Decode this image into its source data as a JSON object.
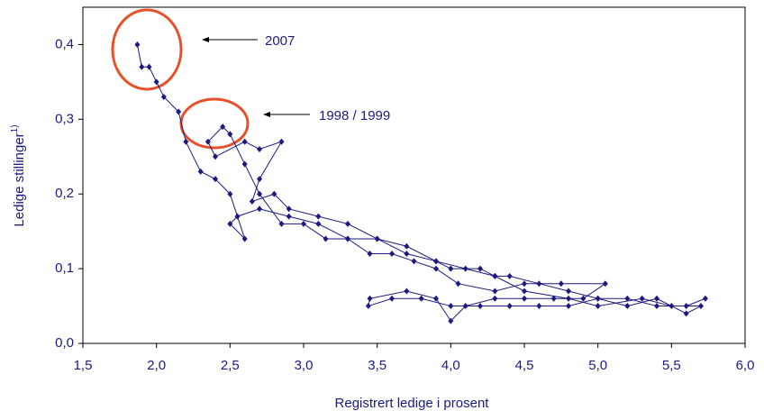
{
  "chart_data": {
    "type": "line",
    "x_label": "Registrert ledige i prosent",
    "y_label": "Ledige stillinger",
    "y_label_note": "1)",
    "annotations": [
      "2007",
      "1998 / 1999"
    ],
    "x": [
      5.73,
      5.6,
      5.4,
      5.2,
      5.0,
      4.8,
      4.6,
      4.4,
      4.2,
      4.0,
      3.8,
      3.6,
      3.44,
      3.45,
      3.7,
      3.9,
      4.0,
      4.1,
      4.3,
      4.5,
      4.7,
      4.9,
      5.05,
      4.75,
      4.5,
      4.3,
      4.05,
      3.9,
      3.75,
      3.6,
      3.45,
      3.3,
      3.15,
      3.0,
      2.85,
      2.7,
      2.6,
      2.5,
      2.45,
      2.35,
      2.4,
      2.6,
      2.7,
      2.85,
      2.7,
      2.65,
      2.8,
      2.9,
      3.1,
      3.3,
      3.5,
      3.7,
      3.9,
      4.0,
      4.2,
      4.3,
      4.4,
      4.6,
      4.8,
      5.0,
      5.2,
      5.4,
      5.6,
      5.7,
      5.5,
      5.3,
      5.0,
      4.8,
      4.5,
      4.3,
      4.1,
      3.9,
      3.7,
      3.5,
      3.3,
      3.1,
      2.9,
      2.7,
      2.55,
      2.5,
      2.6,
      2.5,
      2.4,
      2.3,
      2.2,
      2.15,
      2.05,
      2.0,
      1.95,
      1.9,
      1.87
    ],
    "series": [
      {
        "name": "Ledige stillinger",
        "color": "#1a1a80",
        "values": [
          0.06,
          0.05,
          0.05,
          0.06,
          0.06,
          0.05,
          0.05,
          0.05,
          0.05,
          0.05,
          0.06,
          0.06,
          0.05,
          0.06,
          0.07,
          0.06,
          0.03,
          0.05,
          0.06,
          0.06,
          0.06,
          0.06,
          0.08,
          0.08,
          0.08,
          0.07,
          0.08,
          0.1,
          0.11,
          0.12,
          0.12,
          0.14,
          0.14,
          0.16,
          0.16,
          0.2,
          0.24,
          0.28,
          0.29,
          0.27,
          0.25,
          0.27,
          0.26,
          0.27,
          0.22,
          0.19,
          0.2,
          0.18,
          0.17,
          0.16,
          0.14,
          0.12,
          0.11,
          0.1,
          0.1,
          0.09,
          0.09,
          0.08,
          0.07,
          0.06,
          0.05,
          0.06,
          0.04,
          0.05,
          0.05,
          0.06,
          0.05,
          0.06,
          0.07,
          0.09,
          0.1,
          0.11,
          0.13,
          0.14,
          0.14,
          0.16,
          0.17,
          0.18,
          0.17,
          0.16,
          0.14,
          0.2,
          0.22,
          0.23,
          0.27,
          0.31,
          0.33,
          0.35,
          0.37,
          0.37,
          0.4
        ]
      }
    ],
    "xlim": [
      1.5,
      6.0
    ],
    "xticks": [
      {
        "value": 1.5,
        "label": "1,5"
      },
      {
        "value": 2.0,
        "label": "2,0"
      },
      {
        "value": 2.5,
        "label": "2,5"
      },
      {
        "value": 3.0,
        "label": "3,0"
      },
      {
        "value": 3.5,
        "label": "3,5"
      },
      {
        "value": 4.0,
        "label": "4,0"
      },
      {
        "value": 4.5,
        "label": "4,5"
      },
      {
        "value": 5.0,
        "label": "5,0"
      },
      {
        "value": 5.5,
        "label": "5,5"
      },
      {
        "value": 6.0,
        "label": "6,0"
      }
    ],
    "ylim": [
      0,
      0.45
    ],
    "yticks": [
      {
        "value": 0,
        "label": "0,0"
      },
      {
        "value": 0.1,
        "label": "0,1"
      },
      {
        "value": 0.2,
        "label": "0,2"
      },
      {
        "value": 0.3,
        "label": "0,3"
      },
      {
        "value": 0.4,
        "label": "0,4"
      }
    ],
    "grid": false
  }
}
